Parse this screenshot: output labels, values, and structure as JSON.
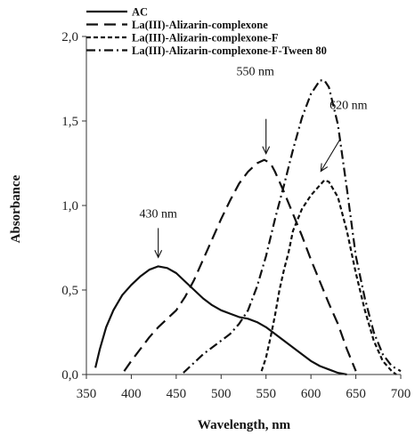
{
  "chart_data": {
    "type": "line",
    "title": "",
    "xlabel": "Wavelength, nm",
    "ylabel": "Absorbance",
    "xlim": [
      350,
      700
    ],
    "ylim": [
      0,
      2.0
    ],
    "xticks": [
      "350",
      "400",
      "450",
      "500",
      "550",
      "600",
      "650",
      "700"
    ],
    "yticks": [
      "0,0",
      "0,5",
      "1,0",
      "1,5",
      "2,0"
    ],
    "grid": false,
    "legend_position": "top-left",
    "series": [
      {
        "name": "AC",
        "dash": "solid",
        "x": [
          360,
          365,
          372,
          380,
          390,
          400,
          410,
          420,
          430,
          440,
          450,
          460,
          470,
          480,
          490,
          500,
          510,
          520,
          530,
          540,
          550,
          560,
          570,
          580,
          590,
          600,
          610,
          620,
          630,
          640
        ],
        "y": [
          0.04,
          0.15,
          0.28,
          0.38,
          0.47,
          0.53,
          0.58,
          0.62,
          0.64,
          0.63,
          0.6,
          0.55,
          0.5,
          0.45,
          0.41,
          0.38,
          0.36,
          0.34,
          0.33,
          0.31,
          0.28,
          0.24,
          0.2,
          0.16,
          0.12,
          0.08,
          0.05,
          0.03,
          0.01,
          0.0
        ]
      },
      {
        "name": "La(III)-Alizarin-complexone",
        "dash": "long-dash",
        "x": [
          392,
          400,
          410,
          420,
          430,
          440,
          450,
          460,
          470,
          480,
          490,
          500,
          510,
          520,
          530,
          540,
          548,
          555,
          560,
          570,
          580,
          590,
          600,
          610,
          620,
          630,
          640,
          650
        ],
        "y": [
          0.02,
          0.08,
          0.15,
          0.22,
          0.28,
          0.33,
          0.38,
          0.46,
          0.56,
          0.68,
          0.8,
          0.92,
          1.03,
          1.13,
          1.2,
          1.25,
          1.27,
          1.25,
          1.2,
          1.08,
          0.95,
          0.82,
          0.68,
          0.55,
          0.42,
          0.3,
          0.15,
          0.02
        ]
      },
      {
        "name": "La(III)-Alizarin-complexone-F",
        "dash": "short-dash",
        "x": [
          545,
          550,
          555,
          560,
          565,
          570,
          575,
          580,
          590,
          600,
          610,
          615,
          620,
          630,
          640,
          650,
          660,
          670,
          680,
          690,
          695
        ],
        "y": [
          0.02,
          0.1,
          0.22,
          0.35,
          0.5,
          0.62,
          0.72,
          0.85,
          0.98,
          1.06,
          1.12,
          1.15,
          1.14,
          1.05,
          0.85,
          0.6,
          0.38,
          0.2,
          0.08,
          0.02,
          0.0
        ]
      },
      {
        "name": "La(III)-Alizarin-complexone-F-Tween 80",
        "dash": "dash-dot",
        "x": [
          458,
          470,
          480,
          490,
          500,
          510,
          520,
          530,
          540,
          550,
          560,
          570,
          580,
          590,
          600,
          610,
          615,
          620,
          630,
          640,
          650,
          660,
          670,
          680,
          690,
          700
        ],
        "y": [
          0.01,
          0.07,
          0.12,
          0.16,
          0.2,
          0.24,
          0.3,
          0.38,
          0.52,
          0.7,
          0.92,
          1.12,
          1.33,
          1.52,
          1.66,
          1.74,
          1.74,
          1.7,
          1.48,
          1.1,
          0.7,
          0.45,
          0.25,
          0.12,
          0.05,
          0.02
        ]
      }
    ],
    "annotations": [
      {
        "text": "430 nm",
        "x": 430,
        "y": 0.64
      },
      {
        "text": "550 nm",
        "x": 550,
        "y": 1.27
      },
      {
        "text": "620 nm",
        "x": 617,
        "y": 1.15
      }
    ]
  }
}
